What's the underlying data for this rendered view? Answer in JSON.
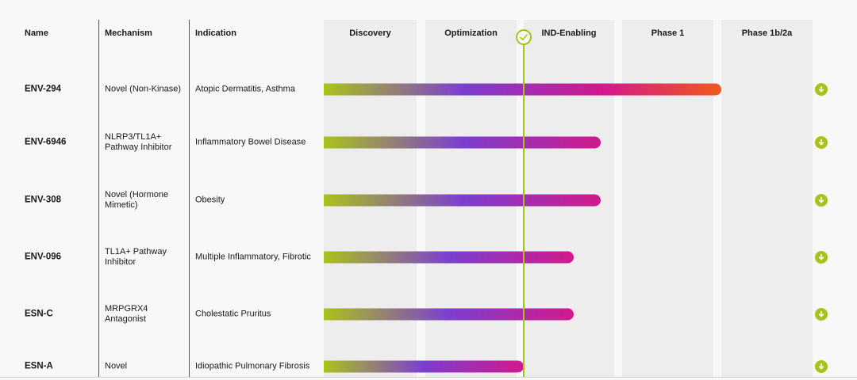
{
  "headers": {
    "name": "Name",
    "mechanism": "Mechanism",
    "indication": "Indication"
  },
  "chart_data": {
    "type": "bar",
    "orientation": "horizontal",
    "title": "",
    "phases": [
      "Discovery",
      "Optimization",
      "IND-Enabling",
      "Phase 1",
      "Phase 1b/2a"
    ],
    "value_unit": "phase columns completed (0-5)",
    "xlim": [
      0,
      5
    ],
    "today_marker": 2.0,
    "programs": [
      {
        "name": "ENV-294",
        "mechanism": "Novel (Non-Kinase)",
        "indication": "Atopic Dermatitis, Asthma",
        "value": 4.0,
        "full_gradient": true
      },
      {
        "name": "ENV-6946",
        "mechanism": "NLRP3/TL1A+ Pathway Inhibitor",
        "indication": "Inflammatory Bowel Disease",
        "value": 2.85,
        "full_gradient": false
      },
      {
        "name": "ENV-308",
        "mechanism": "Novel (Hormone Mimetic)",
        "indication": "Obesity",
        "value": 2.85,
        "full_gradient": false
      },
      {
        "name": "ENV-096",
        "mechanism": "TL1A+ Pathway Inhibitor",
        "indication": "Multiple Inflammatory, Fibrotic",
        "value": 2.55,
        "full_gradient": false
      },
      {
        "name": "ESN-C",
        "mechanism": "MRPGRX4 Antagonist",
        "indication": "Cholestatic Pruritus",
        "value": 2.55,
        "full_gradient": false
      },
      {
        "name": "ESN-A",
        "mechanism": "Novel",
        "indication": "Idiopathic Pulmonary Fibrosis",
        "value": 2.0,
        "full_gradient": false
      }
    ]
  },
  "colors": {
    "accent": "#a9c21a",
    "gradient_green": "#a9c21a",
    "gradient_purple": "#7b3fd0",
    "gradient_magenta": "#d2198c",
    "gradient_orange": "#f05a1e",
    "column_bg": "#ededed",
    "page_bg": "#f8f8f8"
  },
  "icons": {
    "download": "download-arrow-icon",
    "today": "checkmark-icon"
  }
}
